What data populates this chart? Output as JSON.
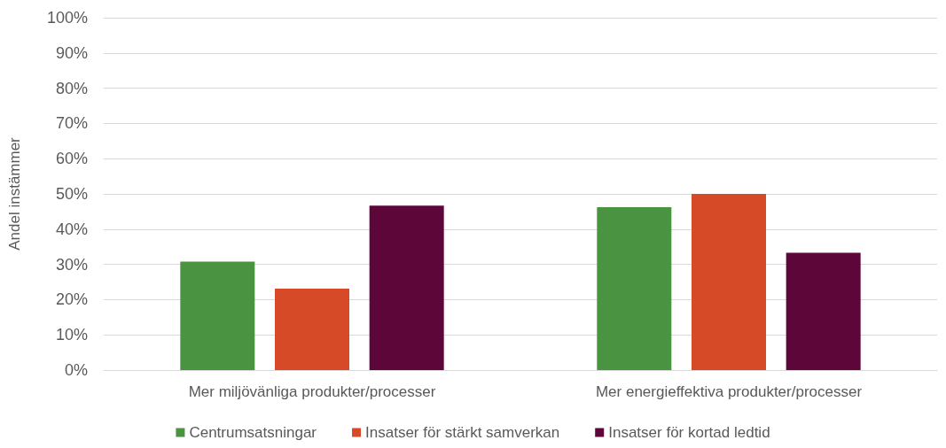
{
  "chart_data": {
    "type": "bar",
    "ylabel": "Andel instämmer",
    "categories": [
      "Mer miljövänliga produkter/processer",
      "Mer energieffektiva produkter/processer"
    ],
    "series": [
      {
        "name": "Centrumsatsningar",
        "color": "#4a9340",
        "values": [
          30.8,
          46.2
        ]
      },
      {
        "name": "Insatser för stärkt samverkan",
        "color": "#d64a27",
        "values": [
          23.1,
          50
        ]
      },
      {
        "name": "Insatser för kortad ledtid",
        "color": "#5c0639",
        "values": [
          46.7,
          33.3
        ]
      }
    ],
    "ylim": [
      0,
      100
    ],
    "yticks": [
      {
        "value": 0,
        "label": "0%"
      },
      {
        "value": 10,
        "label": "10%"
      },
      {
        "value": 20,
        "label": "20%"
      },
      {
        "value": 30,
        "label": "30%"
      },
      {
        "value": 40,
        "label": "40%"
      },
      {
        "value": 50,
        "label": "50%"
      },
      {
        "value": 60,
        "label": "60%"
      },
      {
        "value": 70,
        "label": "70%"
      },
      {
        "value": 80,
        "label": "80%"
      },
      {
        "value": 90,
        "label": "90%"
      },
      {
        "value": 100,
        "label": "100%"
      }
    ],
    "grid": true,
    "legend": "bottom"
  }
}
